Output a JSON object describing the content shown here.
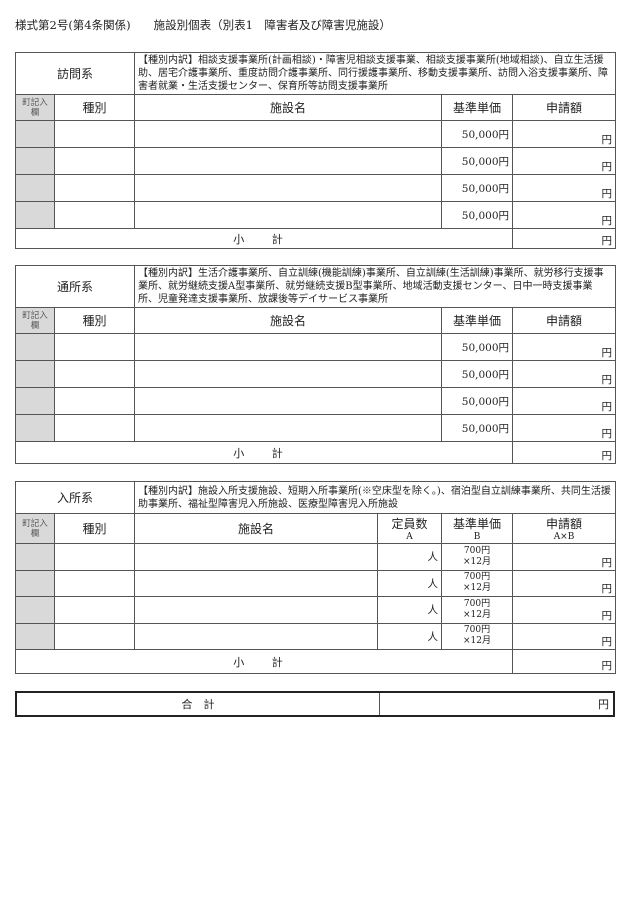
{
  "title": "様式第2号(第4条関係)　　施設別個表（別表1　障害者及び障害児施設）",
  "labels": {
    "town": "町記入欄",
    "kind": "種別",
    "name": "施設名",
    "price": "基準単価",
    "amount": "申請額",
    "capacity": "定員数",
    "cap_sub": "A",
    "price_sub": "B",
    "amount_sub": "A×B",
    "subtotal": "小 計",
    "total": "合　計",
    "yen": "円",
    "person": "人"
  },
  "sections": [
    {
      "category": "訪問系",
      "desc": "【種別内訳】相談支援事業所(計画相談)・障害児相談支援事業、相談支援事業所(地域相談)、自立生活援助、居宅介護事業所、重度訪問介護事業所、同行援護事業所、移動支援事業所、訪問入浴支援事業所、障害者就業・生活支援センター、保育所等訪問支援事業所",
      "rows": [
        {
          "price": "50,000円"
        },
        {
          "price": "50,000円"
        },
        {
          "price": "50,000円"
        },
        {
          "price": "50,000円"
        }
      ]
    },
    {
      "category": "通所系",
      "desc": "【種別内訳】生活介護事業所、自立訓練(機能訓練)事業所、自立訓練(生活訓練)事業所、就労移行支援事業所、就労継続支援A型事業所、就労継続支援B型事業所、地域活動支援センター、日中一時支援事業所、児童発達支援事業所、放課後等デイサービス事業所",
      "rows": [
        {
          "price": "50,000円"
        },
        {
          "price": "50,000円"
        },
        {
          "price": "50,000円"
        },
        {
          "price": "50,000円"
        }
      ]
    },
    {
      "category": "入所系",
      "desc": "【種別内訳】施設入所支援施設、短期入所事業所(※空床型を除く。)、宿泊型自立訓練事業所、共同生活援助事業所、福祉型障害児入所施設、医療型障害児入所施設",
      "rows": [
        {
          "price": "700円",
          "months": "×12月"
        },
        {
          "price": "700円",
          "months": "×12月"
        },
        {
          "price": "700円",
          "months": "×12月"
        },
        {
          "price": "700円",
          "months": "×12月"
        }
      ]
    }
  ]
}
